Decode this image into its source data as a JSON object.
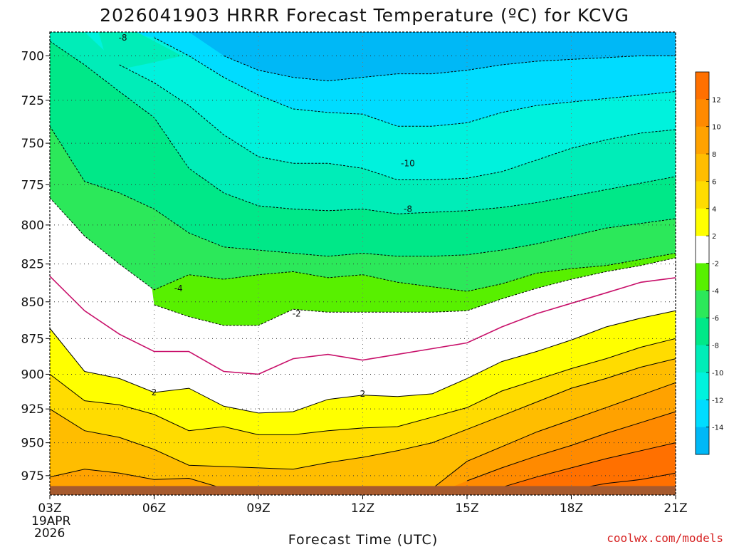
{
  "title": "2026041903 HRRR Forecast Temperature (ºC) for KCVG",
  "xlabel": "Forecast Time (UTC)",
  "credit": "coolwx.com/models",
  "date_label": [
    "19APR",
    "2026"
  ],
  "chart_data": {
    "type": "contour",
    "title": "2026041903 HRRR Forecast Temperature (ºC) for KCVG",
    "xlabel": "Forecast Time (UTC)",
    "ylabel": "",
    "x_ticks": [
      "03Z",
      "06Z",
      "09Z",
      "12Z",
      "15Z",
      "18Z",
      "21Z"
    ],
    "x_hours": [
      3,
      6,
      9,
      12,
      15,
      18,
      21
    ],
    "y_ticks": [
      700,
      725,
      750,
      775,
      800,
      825,
      850,
      875,
      900,
      925,
      950,
      975
    ],
    "x_range_hours": [
      3,
      21
    ],
    "y_range_hPa": [
      687,
      990
    ],
    "y_scale": "log-pressure (inverted)",
    "grid": "dotted",
    "x_hours_sampled": [
      3,
      4,
      5,
      6,
      7,
      8,
      9,
      10,
      11,
      12,
      13,
      14,
      15,
      16,
      17,
      18,
      19,
      20,
      21
    ],
    "contours": [
      {
        "level": -14,
        "pressure_hPa": [
          null,
          null,
          null,
          null,
          null,
          700,
          708,
          712,
          714,
          712,
          710,
          710,
          708,
          705,
          703,
          702,
          701,
          700,
          700
        ],
        "label": ""
      },
      {
        "level": -12,
        "pressure_hPa": [
          null,
          null,
          null,
          690,
          700,
          712,
          722,
          730,
          732,
          733,
          740,
          740,
          738,
          732,
          728,
          726,
          724,
          722,
          720
        ],
        "label": ""
      },
      {
        "level": -10,
        "pressure_hPa": [
          null,
          null,
          705,
          715,
          728,
          745,
          758,
          762,
          762,
          765,
          772,
          772,
          771,
          767,
          760,
          753,
          748,
          744,
          742
        ],
        "label": "-10"
      },
      {
        "level": -8,
        "pressure_hPa": [
          692,
          705,
          720,
          735,
          765,
          780,
          788,
          790,
          791,
          790,
          793,
          792,
          791,
          789,
          786,
          782,
          778,
          774,
          770
        ],
        "label": "-8"
      },
      {
        "level": -6,
        "pressure_hPa": [
          740,
          773,
          780,
          790,
          805,
          814,
          816,
          818,
          820,
          818,
          820,
          820,
          819,
          816,
          812,
          807,
          802,
          799,
          796
        ],
        "label": ""
      },
      {
        "level": -4,
        "pressure_hPa": [
          783,
          807,
          825,
          842,
          832,
          835,
          832,
          830,
          834,
          832,
          837,
          840,
          843,
          838,
          831,
          828,
          826,
          822,
          818
        ],
        "label": "-4"
      },
      {
        "level": -2,
        "pressure_hPa": [
          null,
          null,
          null,
          852,
          860,
          866,
          866,
          855,
          857,
          857,
          857,
          857,
          856,
          848,
          841,
          835,
          830,
          826,
          821
        ],
        "label": "-2"
      },
      {
        "level": 0,
        "pressure_hPa": [
          833,
          856,
          872,
          884,
          884,
          898,
          900,
          889,
          886,
          890,
          886,
          882,
          878,
          867,
          858,
          851,
          844,
          837,
          834
        ],
        "label": ""
      },
      {
        "level": 2,
        "pressure_hPa": [
          868,
          898,
          903,
          913,
          910,
          923,
          928,
          927,
          918,
          915,
          916,
          914,
          903,
          891,
          884,
          876,
          867,
          861,
          856
        ],
        "label": "2"
      },
      {
        "level": 4,
        "pressure_hPa": [
          900,
          919,
          922,
          929,
          941,
          938,
          944,
          944,
          941,
          939,
          938,
          931,
          924,
          912,
          904,
          896,
          889,
          881,
          875
        ],
        "label": ""
      },
      {
        "level": 6,
        "pressure_hPa": [
          925,
          941,
          946,
          955,
          967,
          968,
          969,
          970,
          965,
          961,
          956,
          950,
          940,
          930,
          920,
          910,
          903,
          895,
          889
        ],
        "label": ""
      },
      {
        "level": 8,
        "pressure_hPa": [
          976,
          970,
          973,
          978,
          977,
          985,
          null,
          null,
          null,
          null,
          null,
          985,
          964,
          953,
          942,
          933,
          924,
          915,
          906
        ],
        "label": ""
      },
      {
        "level": 10,
        "pressure_hPa": [
          null,
          null,
          null,
          null,
          null,
          null,
          null,
          null,
          null,
          null,
          null,
          null,
          979,
          969,
          960,
          952,
          943,
          935,
          927
        ],
        "label": ""
      },
      {
        "level": 12,
        "pressure_hPa": [
          null,
          null,
          null,
          null,
          null,
          null,
          null,
          null,
          null,
          null,
          null,
          null,
          null,
          984,
          976,
          969,
          962,
          956,
          950
        ],
        "label": ""
      },
      {
        "level": 14,
        "pressure_hPa": [
          null,
          null,
          null,
          null,
          null,
          null,
          null,
          null,
          null,
          null,
          null,
          null,
          null,
          null,
          null,
          986,
          981,
          978,
          973
        ],
        "label": ""
      }
    ],
    "highlighted_isotherm_C": 0,
    "ground_pressure_hPa": 983,
    "colorbar": {
      "ticks": [
        12,
        10,
        8,
        6,
        4,
        2,
        -2,
        -4,
        -6,
        -8,
        -10,
        -12,
        -14
      ],
      "bands_top_to_bottom": [
        {
          "range": [
            12,
            14
          ],
          "color": "#ff7000"
        },
        {
          "range": [
            10,
            12
          ],
          "color": "#ff8a00"
        },
        {
          "range": [
            8,
            10
          ],
          "color": "#ffa200"
        },
        {
          "range": [
            6,
            8
          ],
          "color": "#ffbd00"
        },
        {
          "range": [
            4,
            6
          ],
          "color": "#ffdc00"
        },
        {
          "range": [
            2,
            4
          ],
          "color": "#ffff00"
        },
        {
          "range": [
            -2,
            2
          ],
          "color": "#ffffff"
        },
        {
          "range": [
            -4,
            -2
          ],
          "color": "#58f000"
        },
        {
          "range": [
            -6,
            -4
          ],
          "color": "#2ce85a"
        },
        {
          "range": [
            -8,
            -6
          ],
          "color": "#00e888"
        },
        {
          "range": [
            -10,
            -8
          ],
          "color": "#00edb8"
        },
        {
          "range": [
            -12,
            -10
          ],
          "color": "#00f2dd"
        },
        {
          "range": [
            -14,
            -12
          ],
          "color": "#00dcff"
        },
        {
          "range": [
            -16,
            -14
          ],
          "color": "#00b8f6"
        }
      ]
    }
  }
}
